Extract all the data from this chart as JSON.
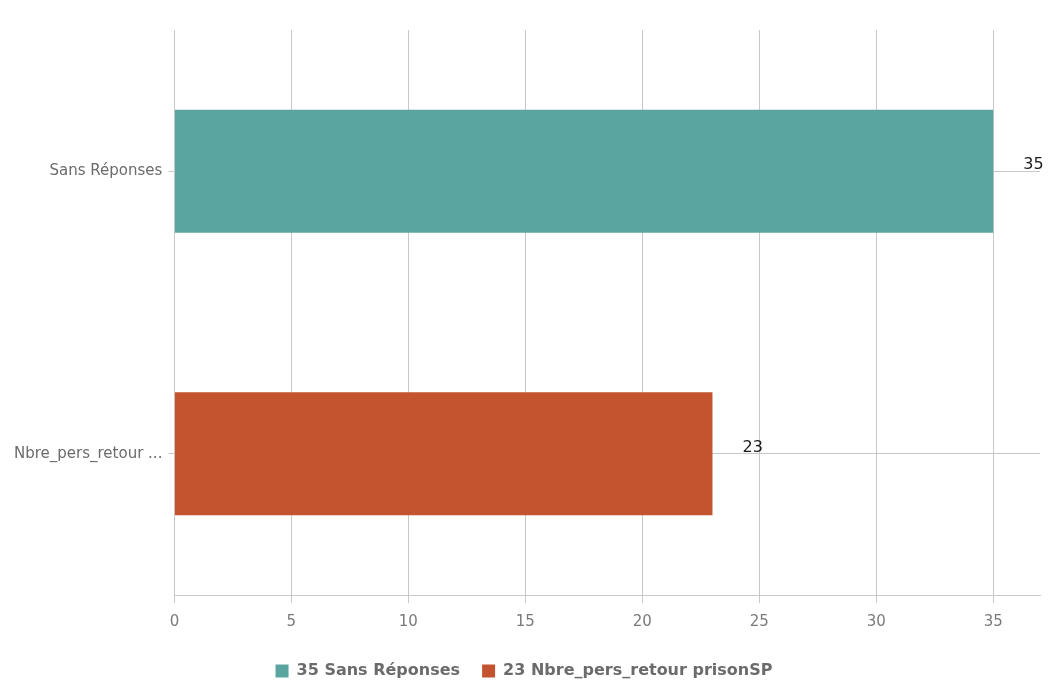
{
  "chart_data": {
    "type": "bar",
    "orientation": "horizontal",
    "categories": [
      "Sans Réponses",
      "Nbre_pers_retour ..."
    ],
    "series": [
      {
        "name": "35 Sans Réponses",
        "color": "#5ba5a0",
        "values": [
          35,
          null
        ]
      },
      {
        "name": "23 Nbre_pers_retour prisonSP",
        "color": "#c4532f",
        "values": [
          null,
          23
        ]
      }
    ],
    "xlim": [
      0,
      37
    ],
    "xticks": [
      0,
      5,
      10,
      15,
      20,
      25,
      30,
      35
    ],
    "grid": true,
    "legend": "bottom",
    "data_labels": true
  }
}
